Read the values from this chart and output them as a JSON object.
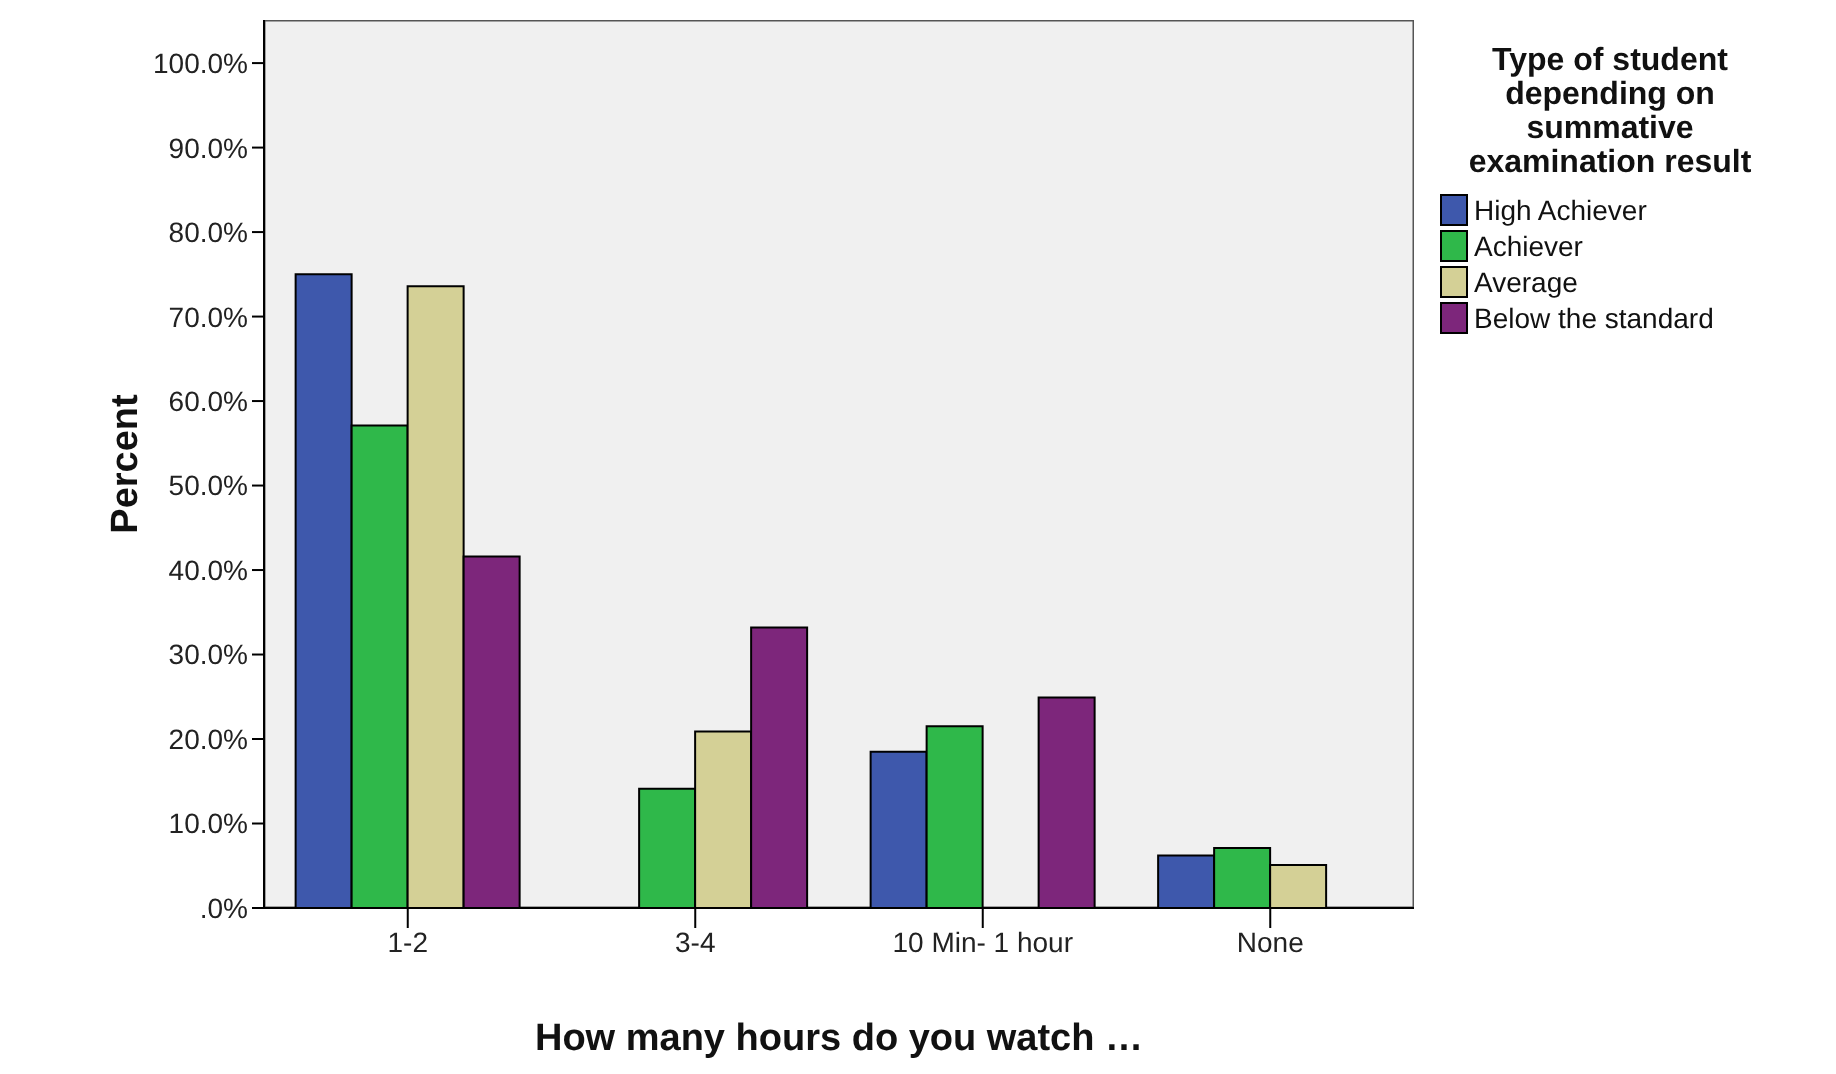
{
  "chart_data": {
    "type": "bar",
    "xlabel": "How many hours do you watch …",
    "ylabel": "Percent",
    "legend_title": "Type of student depending on summative examination result",
    "categories": [
      "1-2",
      "3-4",
      "10 Min- 1 hour",
      "None"
    ],
    "series": [
      {
        "name": "High Achiever",
        "color": "#3e58ac",
        "values": [
          75.0,
          0,
          18.5,
          6.2
        ]
      },
      {
        "name": "Achiever",
        "color": "#2fb84a",
        "values": [
          57.1,
          14.1,
          21.5,
          7.1
        ]
      },
      {
        "name": "Average",
        "color": "#d4d096",
        "values": [
          73.6,
          20.9,
          0,
          5.1
        ]
      },
      {
        "name": "Below the standard",
        "color": "#7d267b",
        "values": [
          41.6,
          33.2,
          24.9,
          0
        ]
      }
    ],
    "ylim": [
      0,
      105.1
    ],
    "yticks": [
      {
        "value": 0,
        "label": ".0%"
      },
      {
        "value": 10,
        "label": "10.0%"
      },
      {
        "value": 20,
        "label": "20.0%"
      },
      {
        "value": 30,
        "label": "30.0%"
      },
      {
        "value": 40,
        "label": "40.0%"
      },
      {
        "value": 50,
        "label": "50.0%"
      },
      {
        "value": 60,
        "label": "60.0%"
      },
      {
        "value": 70,
        "label": "70.0%"
      },
      {
        "value": 80,
        "label": "80.0%"
      },
      {
        "value": 90,
        "label": "90.0%"
      },
      {
        "value": 100,
        "label": "100.0%"
      }
    ],
    "grid": false,
    "legend": "right"
  }
}
